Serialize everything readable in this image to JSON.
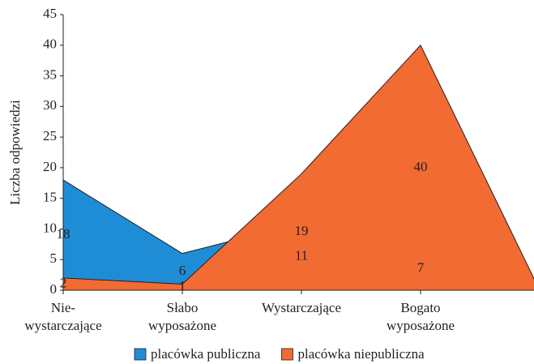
{
  "chart_data": {
    "type": "area",
    "y_label": "Liczba odpowiedzi",
    "categories": [
      "Nie-\nwystarczające",
      "Słabo\nwyposażone",
      "Wystarczające",
      "Bogato\nwyposażone",
      null
    ],
    "series": [
      {
        "name": "placówka publiczna",
        "color": "#1f8dd6",
        "values": [
          18,
          6,
          11,
          7,
          0
        ],
        "value_labels": [
          "18",
          "6",
          "11",
          "7",
          null
        ]
      },
      {
        "name": "placówka niepubliczna",
        "color": "#f26b32",
        "values": [
          2,
          1,
          19,
          40,
          0
        ],
        "value_labels": [
          "2",
          "1",
          "19",
          "40",
          null
        ]
      }
    ],
    "ylim": [
      0,
      45
    ],
    "yticks": [
      0,
      5,
      10,
      15,
      20,
      25,
      30,
      35,
      40,
      45
    ],
    "legend": "bottom"
  }
}
